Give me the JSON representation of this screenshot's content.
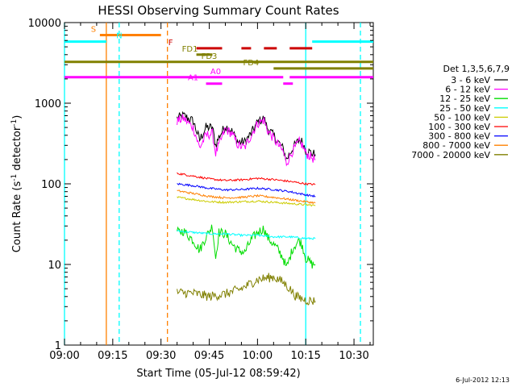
{
  "chart_data": {
    "type": "line",
    "title": "HESSI Observing Summary Count Rates",
    "xlabel": "Start Time (05-Jul-12 08:59:42)",
    "ylabel_main": "Count Rate (s",
    "ylabel_sup": "-1",
    "ylabel_mid": " detector",
    "ylabel_sup2": "-1",
    "ylabel_end": ")",
    "y_scale": "log",
    "ylim": [
      1,
      10000
    ],
    "xlim_minutes": [
      0,
      96
    ],
    "x_ticks": [
      {
        "label": "09:00",
        "minute": 0
      },
      {
        "label": "09:15",
        "minute": 15
      },
      {
        "label": "09:30",
        "minute": 30
      },
      {
        "label": "09:45",
        "minute": 45
      },
      {
        "label": "10:00",
        "minute": 60
      },
      {
        "label": "10:15",
        "minute": 75
      },
      {
        "label": "10:30",
        "minute": 90
      }
    ],
    "y_ticks": [
      {
        "label": "1",
        "value": 1
      },
      {
        "label": "10",
        "value": 10
      },
      {
        "label": "100",
        "value": 100
      },
      {
        "label": "1000",
        "value": 1000
      },
      {
        "label": "10000",
        "value": 10000
      }
    ],
    "legend_title": "Det 1,3,5,6,7,9",
    "legend_position": "right",
    "series": [
      {
        "name": "3 - 6 keV",
        "color": "#000000",
        "approx": [
          [
            35,
            650
          ],
          [
            37,
            700
          ],
          [
            40,
            600
          ],
          [
            42,
            350
          ],
          [
            44,
            500
          ],
          [
            46,
            500
          ],
          [
            47,
            300
          ],
          [
            48,
            380
          ],
          [
            50,
            520
          ],
          [
            52,
            450
          ],
          [
            54,
            330
          ],
          [
            56,
            330
          ],
          [
            58,
            420
          ],
          [
            60,
            580
          ],
          [
            62,
            650
          ],
          [
            63,
            500
          ],
          [
            66,
            350
          ],
          [
            68,
            270
          ],
          [
            69,
            200
          ],
          [
            71,
            280
          ],
          [
            73,
            350
          ],
          [
            74,
            330
          ],
          [
            75,
            260
          ],
          [
            77,
            240
          ],
          [
            78,
            230
          ]
        ]
      },
      {
        "name": "6 - 12 keV",
        "color": "#ff00ff",
        "approx": [
          [
            35,
            600
          ],
          [
            37,
            650
          ],
          [
            40,
            500
          ],
          [
            42,
            280
          ],
          [
            44,
            400
          ],
          [
            46,
            420
          ],
          [
            47,
            240
          ],
          [
            48,
            300
          ],
          [
            50,
            480
          ],
          [
            52,
            420
          ],
          [
            54,
            300
          ],
          [
            56,
            280
          ],
          [
            58,
            400
          ],
          [
            60,
            560
          ],
          [
            62,
            620
          ],
          [
            63,
            470
          ],
          [
            66,
            320
          ],
          [
            68,
            250
          ],
          [
            69,
            180
          ],
          [
            71,
            260
          ],
          [
            73,
            330
          ],
          [
            74,
            300
          ],
          [
            75,
            240
          ],
          [
            77,
            210
          ],
          [
            78,
            200
          ]
        ]
      },
      {
        "name": "12 - 25 keV",
        "color": "#00dd00",
        "approx": [
          [
            35,
            25
          ],
          [
            37,
            26
          ],
          [
            40,
            20
          ],
          [
            42,
            15
          ],
          [
            44,
            22
          ],
          [
            46,
            30
          ],
          [
            47,
            12
          ],
          [
            48,
            25
          ],
          [
            50,
            24
          ],
          [
            52,
            18
          ],
          [
            54,
            15
          ],
          [
            56,
            14
          ],
          [
            58,
            20
          ],
          [
            60,
            25
          ],
          [
            62,
            28
          ],
          [
            63,
            22
          ],
          [
            66,
            16
          ],
          [
            68,
            12
          ],
          [
            69,
            9
          ],
          [
            71,
            16
          ],
          [
            73,
            20
          ],
          [
            74,
            17
          ],
          [
            75,
            12
          ],
          [
            77,
            10
          ],
          [
            78,
            10
          ]
        ]
      },
      {
        "name": "25 - 50 keV",
        "color": "#00ffff",
        "approx": [
          [
            35,
            26
          ],
          [
            40,
            25
          ],
          [
            45,
            24
          ],
          [
            50,
            24
          ],
          [
            55,
            23
          ],
          [
            60,
            23
          ],
          [
            65,
            22
          ],
          [
            70,
            22
          ],
          [
            75,
            21
          ],
          [
            78,
            21
          ]
        ]
      },
      {
        "name": "50 - 100 keV",
        "color": "#cccc00",
        "approx": [
          [
            35,
            68
          ],
          [
            40,
            64
          ],
          [
            45,
            60
          ],
          [
            50,
            59
          ],
          [
            55,
            60
          ],
          [
            60,
            61
          ],
          [
            65,
            59
          ],
          [
            70,
            57
          ],
          [
            75,
            55
          ],
          [
            78,
            54
          ]
        ]
      },
      {
        "name": "100 - 300 keV",
        "color": "#ff0000",
        "approx": [
          [
            35,
            135
          ],
          [
            40,
            125
          ],
          [
            45,
            115
          ],
          [
            50,
            110
          ],
          [
            55,
            112
          ],
          [
            60,
            117
          ],
          [
            65,
            113
          ],
          [
            70,
            107
          ],
          [
            75,
            100
          ],
          [
            78,
            98
          ]
        ]
      },
      {
        "name": "300 - 800 keV",
        "color": "#0000ff",
        "approx": [
          [
            35,
            100
          ],
          [
            40,
            95
          ],
          [
            45,
            88
          ],
          [
            50,
            84
          ],
          [
            55,
            85
          ],
          [
            60,
            88
          ],
          [
            65,
            85
          ],
          [
            70,
            80
          ],
          [
            75,
            73
          ],
          [
            78,
            70
          ]
        ]
      },
      {
        "name": "800 - 7000 keV",
        "color": "#ff8000",
        "approx": [
          [
            35,
            82
          ],
          [
            40,
            76
          ],
          [
            45,
            70
          ],
          [
            50,
            67
          ],
          [
            55,
            68
          ],
          [
            60,
            71
          ],
          [
            65,
            68
          ],
          [
            70,
            64
          ],
          [
            75,
            60
          ],
          [
            78,
            58
          ]
        ]
      },
      {
        "name": "7000 - 20000 keV",
        "color": "#808000",
        "approx": [
          [
            35,
            4.5
          ],
          [
            40,
            4.4
          ],
          [
            45,
            4
          ],
          [
            50,
            4.3
          ],
          [
            55,
            5
          ],
          [
            60,
            6.5
          ],
          [
            65,
            7
          ],
          [
            68,
            6
          ],
          [
            70,
            5
          ],
          [
            72,
            4
          ],
          [
            75,
            3.6
          ],
          [
            78,
            3.5
          ]
        ]
      }
    ],
    "flag_bars": [
      {
        "label": "S",
        "color": "#ff8000",
        "value": 7000,
        "segments": [
          [
            11,
            30
          ]
        ],
        "label_minute": 9
      },
      {
        "label": "N",
        "color": "#00ffff",
        "value": 5800,
        "segments": [
          [
            0,
            13
          ],
          [
            77,
            96
          ]
        ],
        "label_minute": 17
      },
      {
        "label": "F",
        "color": "#cc0000",
        "value": 4800,
        "segments": [
          [
            41,
            49
          ],
          [
            55,
            58
          ],
          [
            62,
            66
          ],
          [
            70,
            77
          ]
        ],
        "label_minute": 33
      },
      {
        "label": "FD1",
        "color": "#808000",
        "value": 4000,
        "segments": [
          [
            41,
            46
          ]
        ],
        "label_minute": 39
      },
      {
        "label": "FD3",
        "color": "#808000",
        "value": 3250,
        "segments": [
          [
            0,
            96
          ]
        ],
        "label_minute": 45
      },
      {
        "label": "FD4",
        "color": "#808000",
        "value": 2700,
        "segments": [
          [
            65,
            96
          ]
        ],
        "label_minute": 58
      },
      {
        "label": "A0",
        "color": "#ff00ff",
        "value": 2100,
        "segments": [
          [
            0,
            68
          ],
          [
            70,
            96
          ]
        ],
        "label_minute": 47
      },
      {
        "label": "A1",
        "color": "#ff00ff",
        "value": 1750,
        "segments": [
          [
            44,
            49
          ],
          [
            68,
            71
          ]
        ],
        "label_minute": 40
      }
    ],
    "vertical_lines": [
      {
        "minute": 0,
        "color": "#00ffff",
        "style": "solid"
      },
      {
        "minute": 13,
        "color": "#ff8000",
        "style": "solid"
      },
      {
        "minute": 17,
        "color": "#00ffff",
        "style": "dashed"
      },
      {
        "minute": 32,
        "color": "#ff8000",
        "style": "dashed"
      },
      {
        "minute": 75,
        "color": "#00ffff",
        "style": "solid"
      },
      {
        "minute": 92,
        "color": "#00ffff",
        "style": "dashed"
      }
    ],
    "footer": "6-Jul-2012 12:13"
  }
}
